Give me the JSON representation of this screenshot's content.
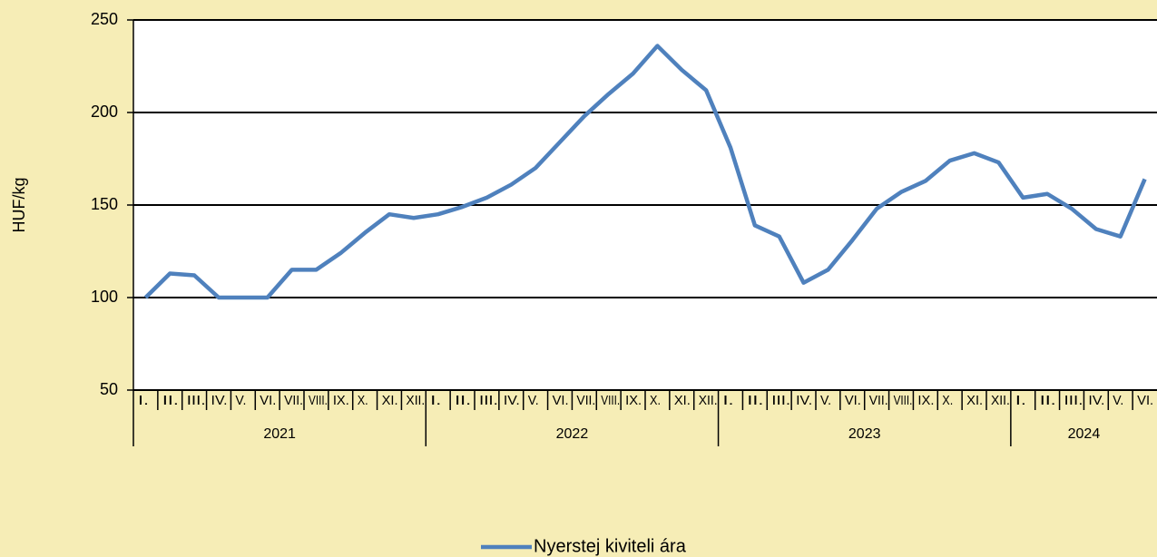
{
  "chart_data": {
    "type": "line",
    "ylabel": "HUF/kg",
    "categories": [
      "I.",
      "II.",
      "III.",
      "IV.",
      "V.",
      "VI.",
      "VII.",
      "VIII.",
      "IX.",
      "X.",
      "XI.",
      "XII.",
      "I.",
      "II.",
      "III.",
      "IV.",
      "V.",
      "VI.",
      "VII.",
      "VIII.",
      "IX.",
      "X.",
      "XI.",
      "XII.",
      "I.",
      "II.",
      "III.",
      "IV.",
      "V.",
      "VI.",
      "VII.",
      "VIII.",
      "IX.",
      "X.",
      "XI.",
      "XII.",
      "I.",
      "II.",
      "III.",
      "IV.",
      "V.",
      "VI."
    ],
    "category_groups": [
      "2021",
      "2022",
      "2023",
      "2024"
    ],
    "series": [
      {
        "name": "Nyerstej kiviteli ára",
        "color": "#4f81bd",
        "values": [
          100,
          113,
          112,
          100,
          100,
          100,
          115,
          115,
          124,
          135,
          145,
          143,
          145,
          149,
          154,
          161,
          170,
          184,
          198,
          210,
          221,
          236,
          223,
          212,
          181,
          139,
          133,
          108,
          115,
          131,
          148,
          157,
          163,
          174,
          178,
          173,
          154,
          156,
          148,
          137,
          133,
          164
        ]
      }
    ],
    "ylim": [
      50,
      250
    ],
    "yticks": [
      50,
      100,
      150,
      200,
      250
    ],
    "grid": true
  }
}
